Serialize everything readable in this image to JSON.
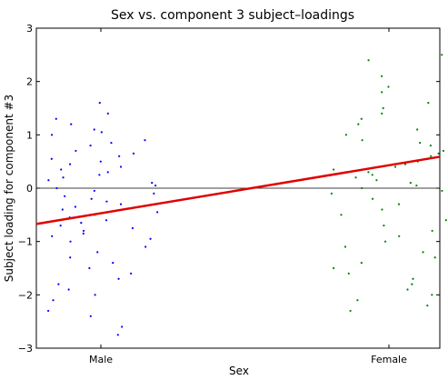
{
  "chart_data": {
    "type": "scatter",
    "title": "Sex vs. component 3 subject–loadings",
    "xlabel": "Sex",
    "ylabel": "Subject loading for component #3",
    "categories": [
      "Male",
      "Female"
    ],
    "ylim": [
      -3,
      3
    ],
    "yticks": [
      "3",
      "2",
      "1",
      "0",
      "−1",
      "−2",
      "−3"
    ],
    "grid": false,
    "legend": "none",
    "colors": {
      "male": "#0000ff",
      "female": "#008000",
      "fit": "#e00000",
      "zero_line": "#000000"
    },
    "fit_line": {
      "x": [
        0.0,
        1.0
      ],
      "y": [
        -0.47,
        0.43
      ]
    },
    "reference_line": {
      "y": 0
    },
    "series": [
      {
        "color": "#0000ff",
        "x_center": 0.0,
        "values": [
          1.6,
          1.4,
          1.3,
          1.2,
          1.1,
          1.05,
          1.0,
          0.9,
          0.85,
          0.8,
          0.7,
          0.65,
          0.6,
          0.55,
          0.5,
          0.45,
          0.4,
          0.35,
          0.3,
          0.25,
          0.2,
          0.15,
          0.1,
          0.05,
          0.0,
          -0.05,
          -0.1,
          -0.15,
          -0.2,
          -0.25,
          -0.3,
          -0.35,
          -0.4,
          -0.45,
          -0.5,
          -0.55,
          -0.6,
          -0.65,
          -0.7,
          -0.75,
          -0.8,
          -0.85,
          -0.9,
          -0.95,
          -1.0,
          -1.1,
          -1.2,
          -1.3,
          -1.4,
          -1.5,
          -1.6,
          -1.7,
          -1.8,
          -1.9,
          -2.0,
          -2.1,
          -2.3,
          -2.4,
          -2.6,
          -2.75
        ]
      },
      {
        "color": "#008000",
        "x_center": 1.0,
        "values": [
          2.5,
          2.4,
          2.1,
          1.9,
          1.8,
          1.6,
          1.5,
          1.4,
          1.3,
          1.2,
          1.1,
          1.0,
          0.9,
          0.85,
          0.8,
          0.7,
          0.65,
          0.6,
          0.5,
          0.45,
          0.4,
          0.35,
          0.3,
          0.25,
          0.2,
          0.15,
          0.1,
          0.05,
          0.0,
          -0.05,
          -0.1,
          -0.2,
          -0.3,
          -0.4,
          -0.5,
          -0.6,
          -0.7,
          -0.8,
          -0.9,
          -1.0,
          -1.1,
          -1.2,
          -1.3,
          -1.4,
          -1.5,
          -1.6,
          -1.7,
          -1.8,
          -1.9,
          -2.0,
          -2.1,
          -2.2,
          -2.3
        ]
      }
    ]
  }
}
